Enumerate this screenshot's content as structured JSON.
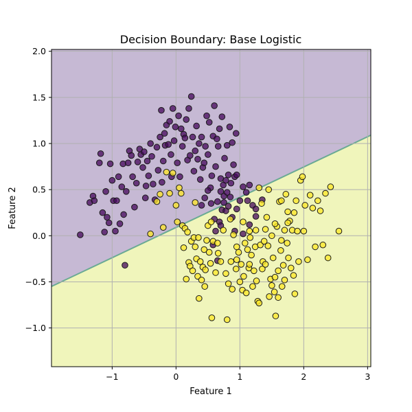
{
  "chart_data": {
    "type": "scatter",
    "title": "Decision Boundary: Base Logistic",
    "xlabel": "Feature 1",
    "ylabel": "Feature 2",
    "xlim": [
      -1.95,
      3.05
    ],
    "ylim": [
      -1.42,
      2.02
    ],
    "x_ticks": [
      {
        "value": -1,
        "label": "−1"
      },
      {
        "value": 0,
        "label": "0"
      },
      {
        "value": 1,
        "label": "1"
      },
      {
        "value": 2,
        "label": "2"
      },
      {
        "value": 3,
        "label": "3"
      }
    ],
    "y_ticks": [
      {
        "value": -1.0,
        "label": "−1.0"
      },
      {
        "value": -0.5,
        "label": "−0.5"
      },
      {
        "value": 0.0,
        "label": "0.0"
      },
      {
        "value": 0.5,
        "label": "0.5"
      },
      {
        "value": 1.0,
        "label": "1.0"
      },
      {
        "value": 1.5,
        "label": "1.5"
      },
      {
        "value": 2.0,
        "label": "2.0"
      }
    ],
    "grid": true,
    "decision_boundary": {
      "points": [
        [
          -1.95,
          -0.55
        ],
        [
          3.05,
          1.09
        ]
      ],
      "region_above_color": "#c6b9d4",
      "region_below_color": "#f0f5bb",
      "line_color": "#6aaa94"
    },
    "series": [
      {
        "color": "#46085c",
        "points": [
          [
            -1.5,
            0.01
          ],
          [
            -1.35,
            0.36
          ],
          [
            -1.3,
            0.43
          ],
          [
            -1.28,
            0.38
          ],
          [
            -1.2,
            0.79
          ],
          [
            -1.18,
            0.89
          ],
          [
            -1.15,
            0.25
          ],
          [
            -1.12,
            0.04
          ],
          [
            -1.1,
            0.48
          ],
          [
            -1.08,
            0.2
          ],
          [
            -1.05,
            0.14
          ],
          [
            -1.03,
            0.78
          ],
          [
            -1.0,
            0.6
          ],
          [
            -0.98,
            0.38
          ],
          [
            -0.95,
            0.05
          ],
          [
            -0.93,
            0.38
          ],
          [
            -0.9,
            0.64
          ],
          [
            -0.88,
            0.13
          ],
          [
            -0.85,
            0.53
          ],
          [
            -0.83,
            0.78
          ],
          [
            -0.82,
            0.23
          ],
          [
            -0.8,
            -0.32
          ],
          [
            -0.78,
            0.48
          ],
          [
            -0.75,
            0.79
          ],
          [
            -0.73,
            0.92
          ],
          [
            -0.7,
            0.87
          ],
          [
            -0.68,
            0.64
          ],
          [
            -0.65,
            0.31
          ],
          [
            -0.62,
            0.57
          ],
          [
            -0.6,
            0.8
          ],
          [
            -0.57,
            0.94
          ],
          [
            -0.55,
            0.88
          ],
          [
            -0.52,
            0.74
          ],
          [
            -0.5,
            0.91
          ],
          [
            -0.48,
            0.41
          ],
          [
            -0.47,
            0.54
          ],
          [
            -0.45,
            0.81
          ],
          [
            -0.43,
            0.65
          ],
          [
            -0.4,
            1.0
          ],
          [
            -0.38,
            0.86
          ],
          [
            -0.36,
            0.56
          ],
          [
            -0.33,
            0.39
          ],
          [
            -0.3,
            0.96
          ],
          [
            -0.28,
            0.71
          ],
          [
            -0.25,
            1.07
          ],
          [
            -0.23,
            1.36
          ],
          [
            -0.22,
            0.58
          ],
          [
            -0.2,
            0.81
          ],
          [
            -0.18,
            1.11
          ],
          [
            -0.17,
            0.98
          ],
          [
            -0.15,
            1.2
          ],
          [
            -0.12,
            0.99
          ],
          [
            -0.1,
            1.24
          ],
          [
            -0.08,
            0.88
          ],
          [
            -0.07,
            0.64
          ],
          [
            -0.05,
            1.38
          ],
          [
            -0.03,
            1.03
          ],
          [
            -0.01,
            1.18
          ],
          [
            0.02,
            0.79
          ],
          [
            0.04,
            1.3
          ],
          [
            0.06,
            0.64
          ],
          [
            0.08,
            1.16
          ],
          [
            0.1,
            0.97
          ],
          [
            0.12,
            1.1
          ],
          [
            0.14,
            1.06
          ],
          [
            0.16,
            1.26
          ],
          [
            0.18,
            0.82
          ],
          [
            0.2,
            1.38
          ],
          [
            0.22,
            0.87
          ],
          [
            0.24,
            1.51
          ],
          [
            0.26,
            1.07
          ],
          [
            0.28,
            0.7
          ],
          [
            0.3,
            0.92
          ],
          [
            0.32,
            1.19
          ],
          [
            0.34,
            0.83
          ],
          [
            0.36,
            1.0
          ],
          [
            0.38,
            0.61
          ],
          [
            0.4,
            1.07
          ],
          [
            0.42,
            0.74
          ],
          [
            0.44,
            0.79
          ],
          [
            0.46,
            0.97
          ],
          [
            0.48,
            1.3
          ],
          [
            0.5,
            0.88
          ],
          [
            0.52,
            1.23
          ],
          [
            0.54,
            0.52
          ],
          [
            0.56,
            0.65
          ],
          [
            0.58,
            1.08
          ],
          [
            0.6,
            1.41
          ],
          [
            0.62,
            0.75
          ],
          [
            0.64,
            1.05
          ],
          [
            0.66,
            0.97
          ],
          [
            0.68,
            1.16
          ],
          [
            0.7,
            0.62
          ],
          [
            0.72,
            1.29
          ],
          [
            0.74,
            0.55
          ],
          [
            0.76,
            0.84
          ],
          [
            0.78,
            0.6
          ],
          [
            0.8,
            0.98
          ],
          [
            0.82,
            0.66
          ],
          [
            0.84,
            1.18
          ],
          [
            0.86,
            0.57
          ],
          [
            0.88,
            1.01
          ],
          [
            0.9,
            0.77
          ],
          [
            0.92,
            0.64
          ],
          [
            0.94,
            1.11
          ],
          [
            0.95,
            0.66
          ],
          [
            0.65,
            0.37
          ],
          [
            0.75,
            0.43
          ],
          [
            0.68,
            0.15
          ],
          [
            0.72,
            0.28
          ],
          [
            0.62,
            0.05
          ],
          [
            0.58,
            -0.1
          ],
          [
            0.65,
            -0.27
          ],
          [
            0.75,
            0.36
          ],
          [
            0.85,
            0.42
          ],
          [
            0.88,
            0.2
          ],
          [
            0.92,
            0.05
          ],
          [
            1.05,
            0.53
          ],
          [
            1.12,
            0.38
          ],
          [
            1.2,
            0.33
          ],
          [
            1.25,
            0.21
          ],
          [
            1.15,
            0.12
          ],
          [
            1.35,
            0.39
          ],
          [
            1.05,
            0.02
          ],
          [
            0.78,
            0.27
          ],
          [
            0.82,
            0.32
          ],
          [
            0.45,
            0.41
          ],
          [
            0.55,
            0.35
          ],
          [
            0.6,
            0.18
          ],
          [
            0.7,
            0.48
          ],
          [
            0.8,
            0.47
          ],
          [
            0.95,
            0.29
          ],
          [
            1.0,
            0.38
          ],
          [
            1.1,
            0.47
          ],
          [
            0.7,
            0.11
          ],
          [
            0.4,
            0.33
          ],
          [
            0.5,
            0.49
          ],
          [
            1.15,
            0.55
          ],
          [
            1.25,
            0.29
          ]
        ]
      },
      {
        "color": "#fde725",
        "points": [
          [
            -0.4,
            0.02
          ],
          [
            -0.3,
            0.37
          ],
          [
            -0.25,
            0.45
          ],
          [
            -0.2,
            0.09
          ],
          [
            -0.15,
            0.69
          ],
          [
            -0.1,
            0.46
          ],
          [
            -0.05,
            0.68
          ],
          [
            0.0,
            0.33
          ],
          [
            0.02,
            0.15
          ],
          [
            0.05,
            0.52
          ],
          [
            0.08,
            0.46
          ],
          [
            0.1,
            0.11
          ],
          [
            0.12,
            -0.13
          ],
          [
            0.14,
            0.08
          ],
          [
            0.16,
            -0.47
          ],
          [
            0.18,
            0.04
          ],
          [
            0.2,
            -0.29
          ],
          [
            0.22,
            -0.33
          ],
          [
            0.24,
            -0.06
          ],
          [
            0.26,
            -0.38
          ],
          [
            0.28,
            -0.02
          ],
          [
            0.3,
            0.36
          ],
          [
            0.32,
            -0.25
          ],
          [
            0.34,
            -0.44
          ],
          [
            0.36,
            -0.68
          ],
          [
            0.38,
            -0.28
          ],
          [
            0.4,
            -0.48
          ],
          [
            0.42,
            -0.34
          ],
          [
            0.44,
            -0.15
          ],
          [
            0.46,
            -0.37
          ],
          [
            0.48,
            -0.05
          ],
          [
            0.5,
            0.11
          ],
          [
            0.52,
            -0.18
          ],
          [
            0.54,
            -0.3
          ],
          [
            0.56,
            -0.89
          ],
          [
            0.58,
            -0.06
          ],
          [
            0.62,
            -0.4
          ],
          [
            0.66,
            -0.19
          ],
          [
            0.7,
            -0.28
          ],
          [
            0.74,
            0.06
          ],
          [
            0.78,
            -0.41
          ],
          [
            0.8,
            -0.91
          ],
          [
            0.82,
            -0.52
          ],
          [
            0.86,
            -0.28
          ],
          [
            0.88,
            -0.58
          ],
          [
            0.9,
            0.01
          ],
          [
            0.94,
            -0.36
          ],
          [
            0.98,
            -0.18
          ],
          [
            1.0,
            -0.5
          ],
          [
            1.02,
            -0.31
          ],
          [
            1.04,
            -0.59
          ],
          [
            1.06,
            -0.44
          ],
          [
            1.08,
            -0.08
          ],
          [
            1.1,
            -0.62
          ],
          [
            1.12,
            -0.15
          ],
          [
            1.14,
            -0.35
          ],
          [
            1.16,
            -0.02
          ],
          [
            1.18,
            -0.21
          ],
          [
            1.2,
            -0.55
          ],
          [
            1.22,
            -0.38
          ],
          [
            1.24,
            -0.12
          ],
          [
            1.26,
            -0.49
          ],
          [
            1.28,
            -0.71
          ],
          [
            1.3,
            -0.73
          ],
          [
            1.32,
            -0.1
          ],
          [
            1.34,
            0.35
          ],
          [
            1.36,
            -0.28
          ],
          [
            1.38,
            -0.06
          ],
          [
            1.4,
            0.07
          ],
          [
            1.42,
            0.2
          ],
          [
            1.44,
            -0.11
          ],
          [
            1.46,
            -0.66
          ],
          [
            1.48,
            -0.47
          ],
          [
            1.5,
            -0.54
          ],
          [
            1.52,
            -0.24
          ],
          [
            1.54,
            -0.61
          ],
          [
            1.56,
            -0.87
          ],
          [
            1.58,
            0.1
          ],
          [
            1.6,
            -0.67
          ],
          [
            1.62,
            0.37
          ],
          [
            1.64,
            -0.16
          ],
          [
            1.66,
            -0.55
          ],
          [
            1.68,
            -0.32
          ],
          [
            1.7,
            0.06
          ],
          [
            1.72,
            0.45
          ],
          [
            1.74,
            -0.08
          ],
          [
            1.76,
            -0.24
          ],
          [
            1.78,
            0.16
          ],
          [
            1.8,
            -0.35
          ],
          [
            1.82,
            0.06
          ],
          [
            1.84,
            -0.43
          ],
          [
            1.86,
            -0.63
          ],
          [
            1.88,
            0.38
          ],
          [
            1.9,
            0.05
          ],
          [
            1.92,
            -0.28
          ],
          [
            1.95,
            0.6
          ],
          [
            1.98,
            0.64
          ],
          [
            2.02,
            0.33
          ],
          [
            2.06,
            -0.26
          ],
          [
            2.1,
            0.44
          ],
          [
            2.14,
            0.3
          ],
          [
            2.18,
            -0.12
          ],
          [
            2.22,
            0.38
          ],
          [
            2.26,
            0.27
          ],
          [
            2.3,
            -0.1
          ],
          [
            2.34,
            0.46
          ],
          [
            2.38,
            -0.24
          ],
          [
            2.42,
            0.53
          ],
          [
            2.55,
            0.05
          ],
          [
            1.55,
            0.13
          ],
          [
            1.45,
            0.5
          ],
          [
            1.3,
            0.52
          ],
          [
            1.65,
            0.38
          ],
          [
            1.75,
            0.26
          ],
          [
            1.85,
            0.25
          ],
          [
            1.5,
            0.0
          ],
          [
            1.35,
            -0.36
          ],
          [
            1.25,
            0.06
          ],
          [
            1.15,
            -0.31
          ],
          [
            0.95,
            -0.26
          ],
          [
            0.85,
            0.18
          ],
          [
            0.65,
            -0.08
          ],
          [
            0.55,
            0.15
          ],
          [
            0.45,
            -0.55
          ],
          [
            0.35,
            -0.02
          ],
          [
            0.3,
            -0.12
          ],
          [
            0.95,
            -0.12
          ],
          [
            1.05,
            0.15
          ],
          [
            1.15,
            0.05
          ],
          [
            1.4,
            -0.31
          ],
          [
            1.6,
            -0.38
          ],
          [
            1.7,
            -0.48
          ],
          [
            1.55,
            -0.45
          ],
          [
            1.65,
            -0.05
          ],
          [
            1.75,
            0.14
          ],
          [
            2.0,
            0.05
          ]
        ]
      }
    ]
  }
}
